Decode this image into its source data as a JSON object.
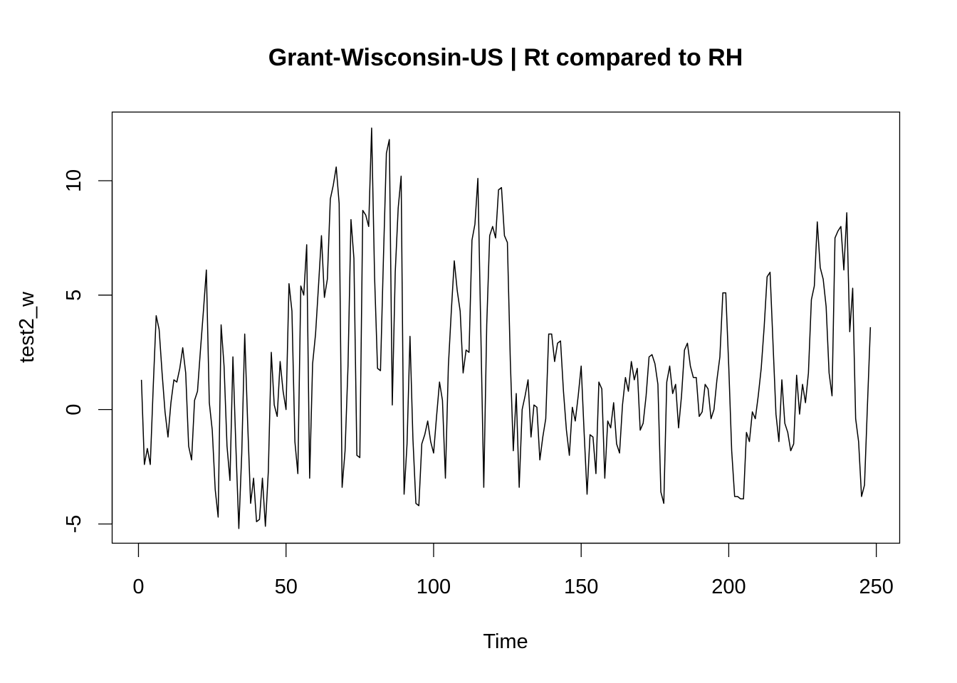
{
  "chart_data": {
    "type": "line",
    "title": "Grant-Wisconsin-US | Rt compared to RH",
    "xlabel": "Time",
    "ylabel": "test2_w",
    "xlim": [
      -8.92,
      257.92
    ],
    "ylim": [
      -5.84,
      13.0
    ],
    "x_ticks": [
      0,
      50,
      100,
      150,
      200,
      250
    ],
    "y_ticks": [
      -5,
      0,
      5,
      10
    ],
    "grid": false,
    "legend": "none",
    "series": [
      {
        "color": "#000000",
        "x_start": 1,
        "x_step": 1,
        "values": [
          1.3,
          -2.4,
          -1.7,
          -2.4,
          1.0,
          4.1,
          3.5,
          1.6,
          -0.1,
          -1.2,
          0.3,
          1.3,
          1.2,
          1.8,
          2.7,
          1.6,
          -1.6,
          -2.2,
          0.4,
          0.8,
          2.6,
          4.3,
          6.1,
          0.3,
          -0.9,
          -3.5,
          -4.7,
          3.7,
          1.9,
          -1.6,
          -3.1,
          2.3,
          -1.6,
          -5.2,
          -1.9,
          3.3,
          -0.6,
          -4.1,
          -3.0,
          -4.9,
          -4.8,
          -3.0,
          -5.1,
          -2.7,
          2.5,
          0.2,
          -0.3,
          2.1,
          0.8,
          0.0,
          5.5,
          4.3,
          -1.4,
          -2.8,
          5.4,
          5.0,
          7.2,
          -3.0,
          2.0,
          3.3,
          5.4,
          7.6,
          4.9,
          5.7,
          9.2,
          9.8,
          10.6,
          9.0,
          -3.4,
          -1.8,
          1.9,
          8.3,
          6.6,
          -2.0,
          -2.1,
          8.7,
          8.5,
          8.0,
          12.3,
          5.8,
          1.8,
          1.7,
          6.6,
          11.2,
          11.8,
          0.2,
          6.0,
          8.8,
          10.2,
          -3.7,
          -1.5,
          3.2,
          -1.3,
          -4.1,
          -4.2,
          -1.5,
          -1.1,
          -0.5,
          -1.4,
          -1.9,
          -0.3,
          1.2,
          0.4,
          -3.0,
          1.9,
          4.3,
          6.5,
          5.2,
          4.3,
          1.6,
          2.6,
          2.5,
          7.4,
          8.1,
          10.1,
          3.4,
          -3.4,
          3.7,
          7.6,
          8.0,
          7.5,
          9.6,
          9.7,
          7.6,
          7.3,
          2.1,
          -1.8,
          0.7,
          -3.4,
          0.0,
          0.6,
          1.3,
          -1.2,
          0.2,
          0.1,
          -2.2,
          -1.2,
          -0.4,
          3.3,
          3.3,
          2.1,
          2.9,
          3.0,
          0.8,
          -0.9,
          -2.0,
          0.1,
          -0.5,
          0.6,
          1.9,
          -1.0,
          -3.7,
          -1.1,
          -1.2,
          -2.8,
          1.2,
          0.9,
          -3.0,
          -0.5,
          -0.8,
          0.3,
          -1.5,
          -1.9,
          0.2,
          1.4,
          0.8,
          2.1,
          1.3,
          1.8,
          -0.9,
          -0.6,
          0.6,
          2.3,
          2.4,
          2.0,
          1.1,
          -3.6,
          -4.1,
          1.2,
          1.9,
          0.7,
          1.1,
          -0.8,
          0.6,
          2.6,
          2.9,
          1.9,
          1.4,
          1.4,
          -0.3,
          -0.1,
          1.1,
          0.9,
          -0.4,
          0.0,
          1.3,
          2.3,
          5.1,
          5.1,
          1.9,
          -1.8,
          -3.8,
          -3.8,
          -3.9,
          -3.9,
          -1.0,
          -1.4,
          -0.1,
          -0.4,
          0.6,
          1.8,
          3.6,
          5.8,
          6.0,
          2.9,
          -0.2,
          -1.4,
          1.3,
          -0.6,
          -1.0,
          -1.8,
          -1.5,
          1.5,
          -0.2,
          1.1,
          0.3,
          1.6,
          4.8,
          5.4,
          8.2,
          6.2,
          5.7,
          4.5,
          1.6,
          0.6,
          7.5,
          7.8,
          8.0,
          6.1,
          8.6,
          3.4,
          5.3,
          -0.4,
          -1.4,
          -3.8,
          -3.3,
          0.2,
          3.6
        ]
      }
    ]
  }
}
